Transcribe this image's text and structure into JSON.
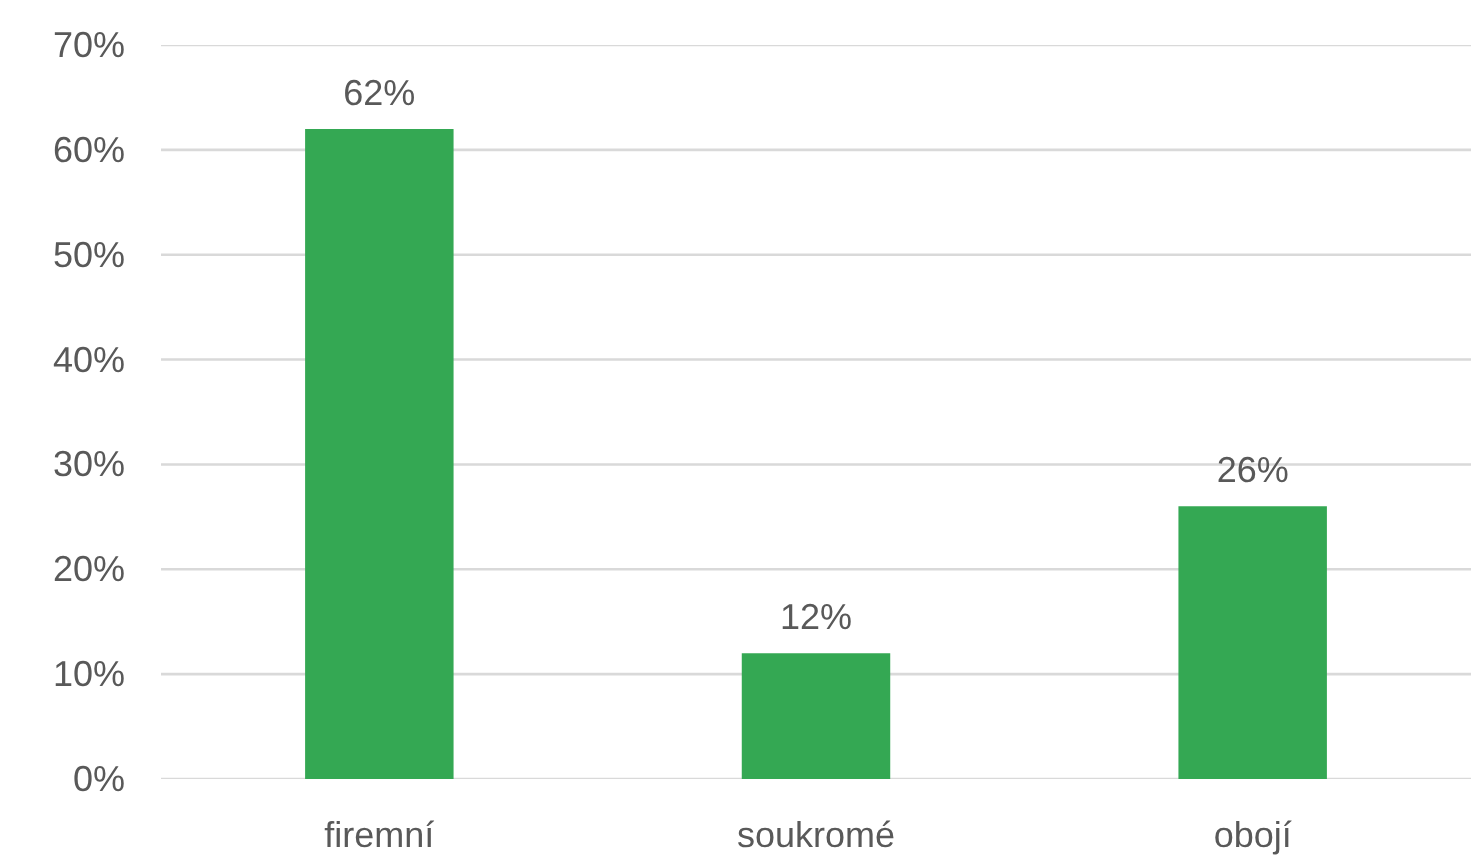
{
  "chart_data": {
    "type": "bar",
    "categories": [
      "firemní",
      "soukromé",
      "obojí"
    ],
    "values": [
      62,
      12,
      26
    ],
    "value_labels": [
      "62%",
      "12%",
      "26%"
    ],
    "color": "#34a853",
    "ylim": [
      0,
      70
    ],
    "yticks": [
      {
        "value": 0,
        "label": "0%"
      },
      {
        "value": 10,
        "label": "10%"
      },
      {
        "value": 20,
        "label": "20%"
      },
      {
        "value": 30,
        "label": "30%"
      },
      {
        "value": 40,
        "label": "40%"
      },
      {
        "value": 50,
        "label": "50%"
      },
      {
        "value": 60,
        "label": "60%"
      },
      {
        "value": 70,
        "label": "70%"
      }
    ],
    "grid": "y"
  }
}
